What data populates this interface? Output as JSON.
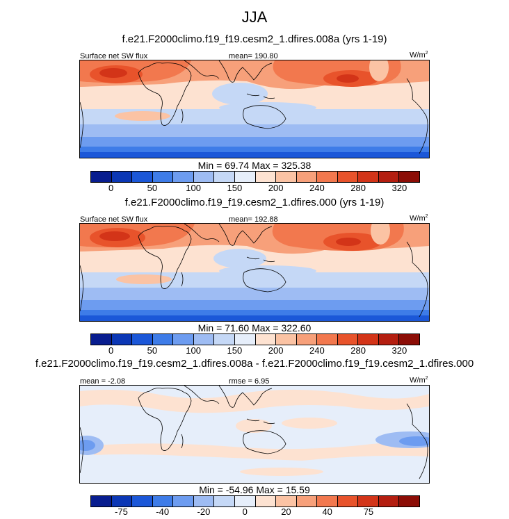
{
  "season": "JJA",
  "chart_data": [
    {
      "type": "heatmap",
      "title": "f.e21.F2000climo.f19_f19.cesm2_1.dfires.008a (yrs 1-19)",
      "variable": "Surface net SW flux",
      "mean_label": "mean= 190.80",
      "units": "W/m",
      "units_sup": "2",
      "minmax_label": "Min =  69.74 Max = 325.38",
      "colorbar_ticks": [
        "0",
        "50",
        "100",
        "150",
        "200",
        "240",
        "280",
        "320"
      ],
      "colors": [
        "#081d8f",
        "#0b37b5",
        "#1b57d8",
        "#3e7ce8",
        "#6d9cf0",
        "#9ebcf3",
        "#c5d8f6",
        "#e6eefa",
        "#fde2d1",
        "#fbc3a4",
        "#f7a07a",
        "#f2784e",
        "#e8532b",
        "#d33418",
        "#b41e10",
        "#8c0d06"
      ]
    },
    {
      "type": "heatmap",
      "title": "f.e21.F2000climo.f19_f19.cesm2_1.dfires.000 (yrs 1-19)",
      "variable": "Surface net SW flux",
      "mean_label": "mean= 192.88",
      "units": "W/m",
      "units_sup": "2",
      "minmax_label": "Min =  71.60 Max = 322.60",
      "colorbar_ticks": [
        "0",
        "50",
        "100",
        "150",
        "200",
        "240",
        "280",
        "320"
      ],
      "colors": [
        "#081d8f",
        "#0b37b5",
        "#1b57d8",
        "#3e7ce8",
        "#6d9cf0",
        "#9ebcf3",
        "#c5d8f6",
        "#e6eefa",
        "#fde2d1",
        "#fbc3a4",
        "#f7a07a",
        "#f2784e",
        "#e8532b",
        "#d33418",
        "#b41e10",
        "#8c0d06"
      ]
    },
    {
      "type": "heatmap",
      "title": "f.e21.F2000climo.f19_f19.cesm2_1.dfires.008a - f.e21.F2000climo.f19_f19.cesm2_1.dfires.000",
      "mean_label": "mean =  -2.08",
      "rmse_label": "rmse =  6.95",
      "units": "W/m",
      "units_sup": "2",
      "minmax_label": "Min = -54.96 Max =  15.59",
      "colorbar_ticks": [
        "-75",
        "-40",
        "-20",
        "0",
        "20",
        "40",
        "75"
      ],
      "colors": [
        "#081d8f",
        "#0b37b5",
        "#1b57d8",
        "#3e7ce8",
        "#6d9cf0",
        "#9ebcf3",
        "#c5d8f6",
        "#e6eefa",
        "#fde2d1",
        "#fbc3a4",
        "#f7a07a",
        "#f2784e",
        "#e8532b",
        "#d33418",
        "#b41e10",
        "#8c0d06"
      ]
    }
  ]
}
